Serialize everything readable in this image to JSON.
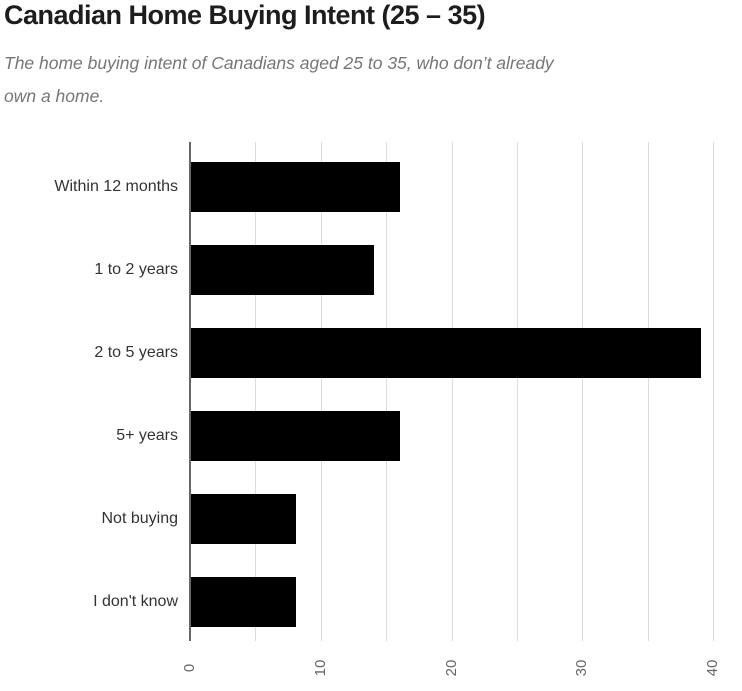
{
  "chart": {
    "title": "Canadian Home Buying Intent (25 – 35)",
    "subtitle_line1": "The home buying intent of Canadians aged 25 to 35, who don’t already",
    "subtitle_line2": "own a home."
  },
  "chart_data": {
    "type": "bar",
    "orientation": "horizontal",
    "title": "Canadian Home Buying Intent (25 – 35)",
    "subtitle": "The home buying intent of Canadians aged 25 to 35, who don’t already own a home.",
    "categories": [
      "Within 12 months",
      "1 to 2 years",
      "2 to 5 years",
      "5+ years",
      "Not buying",
      "I don't know"
    ],
    "values": [
      16,
      14,
      39,
      16,
      8,
      8
    ],
    "xlabel": "",
    "ylabel": "",
    "xlim": [
      0,
      40
    ],
    "x_tick_labels": [
      "0",
      "10",
      "20",
      "30",
      "40"
    ],
    "x_tick_values": [
      0,
      10,
      20,
      30,
      40
    ],
    "gridline_step": 5,
    "grid": true,
    "legend": false,
    "tick_label_rotation_degrees": -90,
    "colors": {
      "bar": "#000000",
      "axis": "#666666",
      "gridline": "#dcdcdc",
      "title_text": "#1d1d1d",
      "subtitle_text": "#767676",
      "category_text": "#333333",
      "tick_text": "#666666"
    }
  }
}
